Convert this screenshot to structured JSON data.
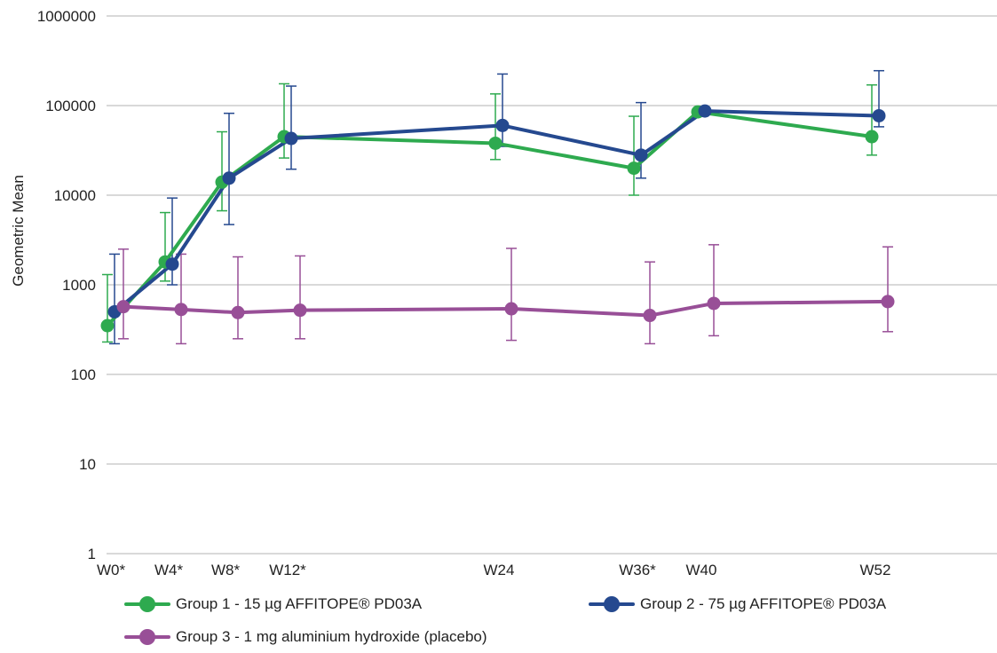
{
  "chart_data": {
    "type": "line",
    "title": "",
    "xlabel": "",
    "ylabel": "Geometric Mean",
    "y_scale": "log",
    "ylim": [
      1,
      1000000
    ],
    "y_ticks": [
      "1",
      "10",
      "100",
      "1000",
      "10000",
      "100000",
      "1000000"
    ],
    "x_ticks": [
      "W0*",
      "W4*",
      "W8*",
      "W12*",
      "W24",
      "W36*",
      "W40",
      "W52"
    ],
    "grid": true,
    "legend_position": "bottom",
    "series": [
      {
        "name": "Group 1 - 15 µg AFFITOPE® PD03A",
        "color": "#2eaa4f",
        "points": [
          {
            "x": "W0*",
            "y": 350,
            "err_low": 230,
            "err_high": 1300
          },
          {
            "x": "W4*",
            "y": 1800,
            "err_low": 1100,
            "err_high": 6400
          },
          {
            "x": "W8*",
            "y": 14000,
            "err_low": 6700,
            "err_high": 51000
          },
          {
            "x": "W12*",
            "y": 45000,
            "err_low": 26000,
            "err_high": 175000
          },
          {
            "x": "W24",
            "y": 38000,
            "err_low": 25000,
            "err_high": 135000
          },
          {
            "x": "W36*",
            "y": 20000,
            "err_low": 10000,
            "err_high": 76000
          },
          {
            "x": "W40",
            "y": 85000,
            "err_low": 85000,
            "err_high": 85000
          },
          {
            "x": "W52",
            "y": 45000,
            "err_low": 28000,
            "err_high": 170000
          }
        ]
      },
      {
        "name": "Group 2 - 75 µg AFFITOPE® PD03A",
        "color": "#25498f",
        "points": [
          {
            "x": "W0*",
            "y": 500,
            "err_low": 220,
            "err_high": 2200
          },
          {
            "x": "W4*",
            "y": 1700,
            "err_low": 1000,
            "err_high": 9300
          },
          {
            "x": "W8*",
            "y": 15500,
            "err_low": 4700,
            "err_high": 82000
          },
          {
            "x": "W12*",
            "y": 43000,
            "err_low": 19500,
            "err_high": 165000
          },
          {
            "x": "W24",
            "y": 60000,
            "err_low": 35000,
            "err_high": 225000
          },
          {
            "x": "W36*",
            "y": 28000,
            "err_low": 15500,
            "err_high": 108000
          },
          {
            "x": "W40",
            "y": 87000,
            "err_low": 87000,
            "err_high": 87000
          },
          {
            "x": "W52",
            "y": 77000,
            "err_low": 58000,
            "err_high": 245000
          }
        ]
      },
      {
        "name": "Group 3 - 1 mg aluminium hydroxide (placebo)",
        "color": "#984f97",
        "points": [
          {
            "x": "W0*",
            "y": 570,
            "err_low": 250,
            "err_high": 2500
          },
          {
            "x": "W4*",
            "y": 530,
            "err_low": 220,
            "err_high": 2200
          },
          {
            "x": "W8*",
            "y": 490,
            "err_low": 250,
            "err_high": 2050
          },
          {
            "x": "W12*",
            "y": 520,
            "err_low": 250,
            "err_high": 2100
          },
          {
            "x": "W24",
            "y": 540,
            "err_low": 240,
            "err_high": 2550
          },
          {
            "x": "W36*",
            "y": 455,
            "err_low": 220,
            "err_high": 1800
          },
          {
            "x": "W40",
            "y": 620,
            "err_low": 270,
            "err_high": 2800
          },
          {
            "x": "W52",
            "y": 650,
            "err_low": 300,
            "err_high": 2650
          }
        ]
      }
    ]
  }
}
